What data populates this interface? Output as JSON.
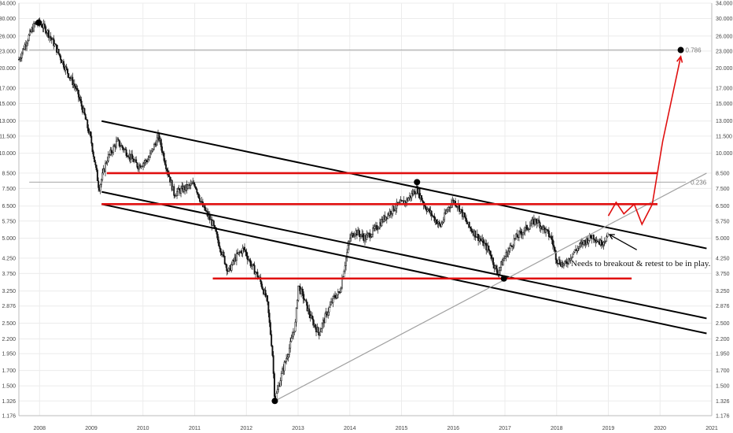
{
  "chart_data": {
    "type": "candlestick",
    "scale": "log",
    "x_ticks": [
      "2008",
      "2009",
      "2010",
      "2011",
      "2012",
      "2013",
      "2014",
      "2015",
      "2016",
      "2017",
      "2018",
      "2019",
      "2020",
      "2021"
    ],
    "y_ticks": [
      "1.176",
      "1.326",
      "1.500",
      "1.700",
      "1.950",
      "2.200",
      "2.500",
      "2.876",
      "3.250",
      "3.750",
      "4.250",
      "5.000",
      "5.750",
      "6.500",
      "7.500",
      "8.500",
      "10.000",
      "11.500",
      "13.000",
      "15.000",
      "17.000",
      "20.000",
      "23.000",
      "26.000",
      "30.000",
      "34.000"
    ],
    "ylim": [
      1.176,
      34.0
    ],
    "xlim": [
      2007.6,
      2021.0
    ],
    "grid": true,
    "price_path": [
      [
        2007.6,
        21.5
      ],
      [
        2007.75,
        25.0
      ],
      [
        2007.9,
        28.5
      ],
      [
        2008.0,
        29.0
      ],
      [
        2008.15,
        27.0
      ],
      [
        2008.3,
        24.0
      ],
      [
        2008.5,
        20.0
      ],
      [
        2008.7,
        17.0
      ],
      [
        2008.85,
        14.0
      ],
      [
        2009.0,
        11.0
      ],
      [
        2009.15,
        7.5
      ],
      [
        2009.3,
        9.5
      ],
      [
        2009.5,
        11.0
      ],
      [
        2009.7,
        10.0
      ],
      [
        2009.9,
        9.0
      ],
      [
        2010.1,
        9.5
      ],
      [
        2010.3,
        11.5
      ],
      [
        2010.45,
        9.0
      ],
      [
        2010.6,
        7.2
      ],
      [
        2010.8,
        7.5
      ],
      [
        2011.0,
        7.8
      ],
      [
        2011.15,
        6.5
      ],
      [
        2011.35,
        5.6
      ],
      [
        2011.5,
        4.6
      ],
      [
        2011.65,
        3.8
      ],
      [
        2011.8,
        4.3
      ],
      [
        2011.95,
        4.6
      ],
      [
        2012.1,
        4.0
      ],
      [
        2012.25,
        3.6
      ],
      [
        2012.4,
        3.0
      ],
      [
        2012.5,
        2.0
      ],
      [
        2012.55,
        1.33
      ],
      [
        2012.7,
        1.7
      ],
      [
        2012.85,
        2.1
      ],
      [
        2012.95,
        2.5
      ],
      [
        2013.0,
        3.4
      ],
      [
        2013.1,
        3.1
      ],
      [
        2013.25,
        2.6
      ],
      [
        2013.4,
        2.3
      ],
      [
        2013.55,
        2.7
      ],
      [
        2013.7,
        3.1
      ],
      [
        2013.8,
        3.2
      ],
      [
        2013.9,
        4.0
      ],
      [
        2014.0,
        5.0
      ],
      [
        2014.1,
        5.3
      ],
      [
        2014.3,
        5.0
      ],
      [
        2014.5,
        5.4
      ],
      [
        2014.7,
        6.0
      ],
      [
        2014.9,
        6.5
      ],
      [
        2015.1,
        6.8
      ],
      [
        2015.3,
        7.5
      ],
      [
        2015.45,
        6.5
      ],
      [
        2015.6,
        6.0
      ],
      [
        2015.75,
        5.5
      ],
      [
        2015.9,
        6.4
      ],
      [
        2016.0,
        6.8
      ],
      [
        2016.1,
        6.5
      ],
      [
        2016.3,
        5.5
      ],
      [
        2016.5,
        5.0
      ],
      [
        2016.7,
        4.5
      ],
      [
        2016.85,
        3.75
      ],
      [
        2017.0,
        4.3
      ],
      [
        2017.2,
        5.0
      ],
      [
        2017.4,
        5.4
      ],
      [
        2017.6,
        5.8
      ],
      [
        2017.75,
        5.4
      ],
      [
        2017.9,
        5.0
      ],
      [
        2018.0,
        4.2
      ],
      [
        2018.15,
        4.0
      ],
      [
        2018.3,
        4.4
      ],
      [
        2018.5,
        4.8
      ],
      [
        2018.7,
        5.1
      ],
      [
        2018.85,
        4.8
      ],
      [
        2019.0,
        5.1
      ]
    ],
    "trendlines": [
      {
        "style": "black",
        "points": [
          [
            2009.2,
            13.0
          ],
          [
            2020.9,
            4.6
          ]
        ]
      },
      {
        "style": "black",
        "points": [
          [
            2009.2,
            7.3
          ],
          [
            2020.9,
            2.6
          ]
        ]
      },
      {
        "style": "black",
        "points": [
          [
            2009.2,
            6.6
          ],
          [
            2020.9,
            2.3
          ]
        ]
      },
      {
        "style": "gray",
        "points": [
          [
            2012.55,
            1.326
          ],
          [
            2020.9,
            8.5
          ]
        ]
      }
    ],
    "horizontal_levels": [
      {
        "style": "red",
        "value": 8.5,
        "from": 2009.3,
        "to": 2019.95
      },
      {
        "style": "red",
        "value": 6.6,
        "from": 2009.2,
        "to": 2019.95
      },
      {
        "style": "red",
        "value": 3.6,
        "from": 2011.35,
        "to": 2019.45
      },
      {
        "style": "gray",
        "value": 23.2,
        "from": 2007.8,
        "to": 2020.4,
        "label": "0.786"
      },
      {
        "style": "gray",
        "value": 7.9,
        "from": 2007.8,
        "to": 2020.5,
        "label": "0.236"
      }
    ],
    "pivot_points": [
      {
        "x": 2007.98,
        "y": 29.0
      },
      {
        "x": 2012.55,
        "y": 1.326
      },
      {
        "x": 2015.3,
        "y": 7.9
      },
      {
        "x": 2016.98,
        "y": 3.6
      },
      {
        "x": 2020.4,
        "y": 23.2
      }
    ],
    "projection": [
      [
        2019.0,
        6.0
      ],
      [
        2019.15,
        6.7
      ],
      [
        2019.3,
        6.1
      ],
      [
        2019.5,
        6.6
      ],
      [
        2019.65,
        5.6
      ],
      [
        2019.85,
        6.6
      ],
      [
        2020.05,
        11.0
      ],
      [
        2020.4,
        22.0
      ]
    ],
    "annotation": "Needs to breakout & retest to be in play.",
    "arrow_colors": {
      "candles": "#111111",
      "support_resistance": "#e01010",
      "fib": "#999999"
    }
  }
}
